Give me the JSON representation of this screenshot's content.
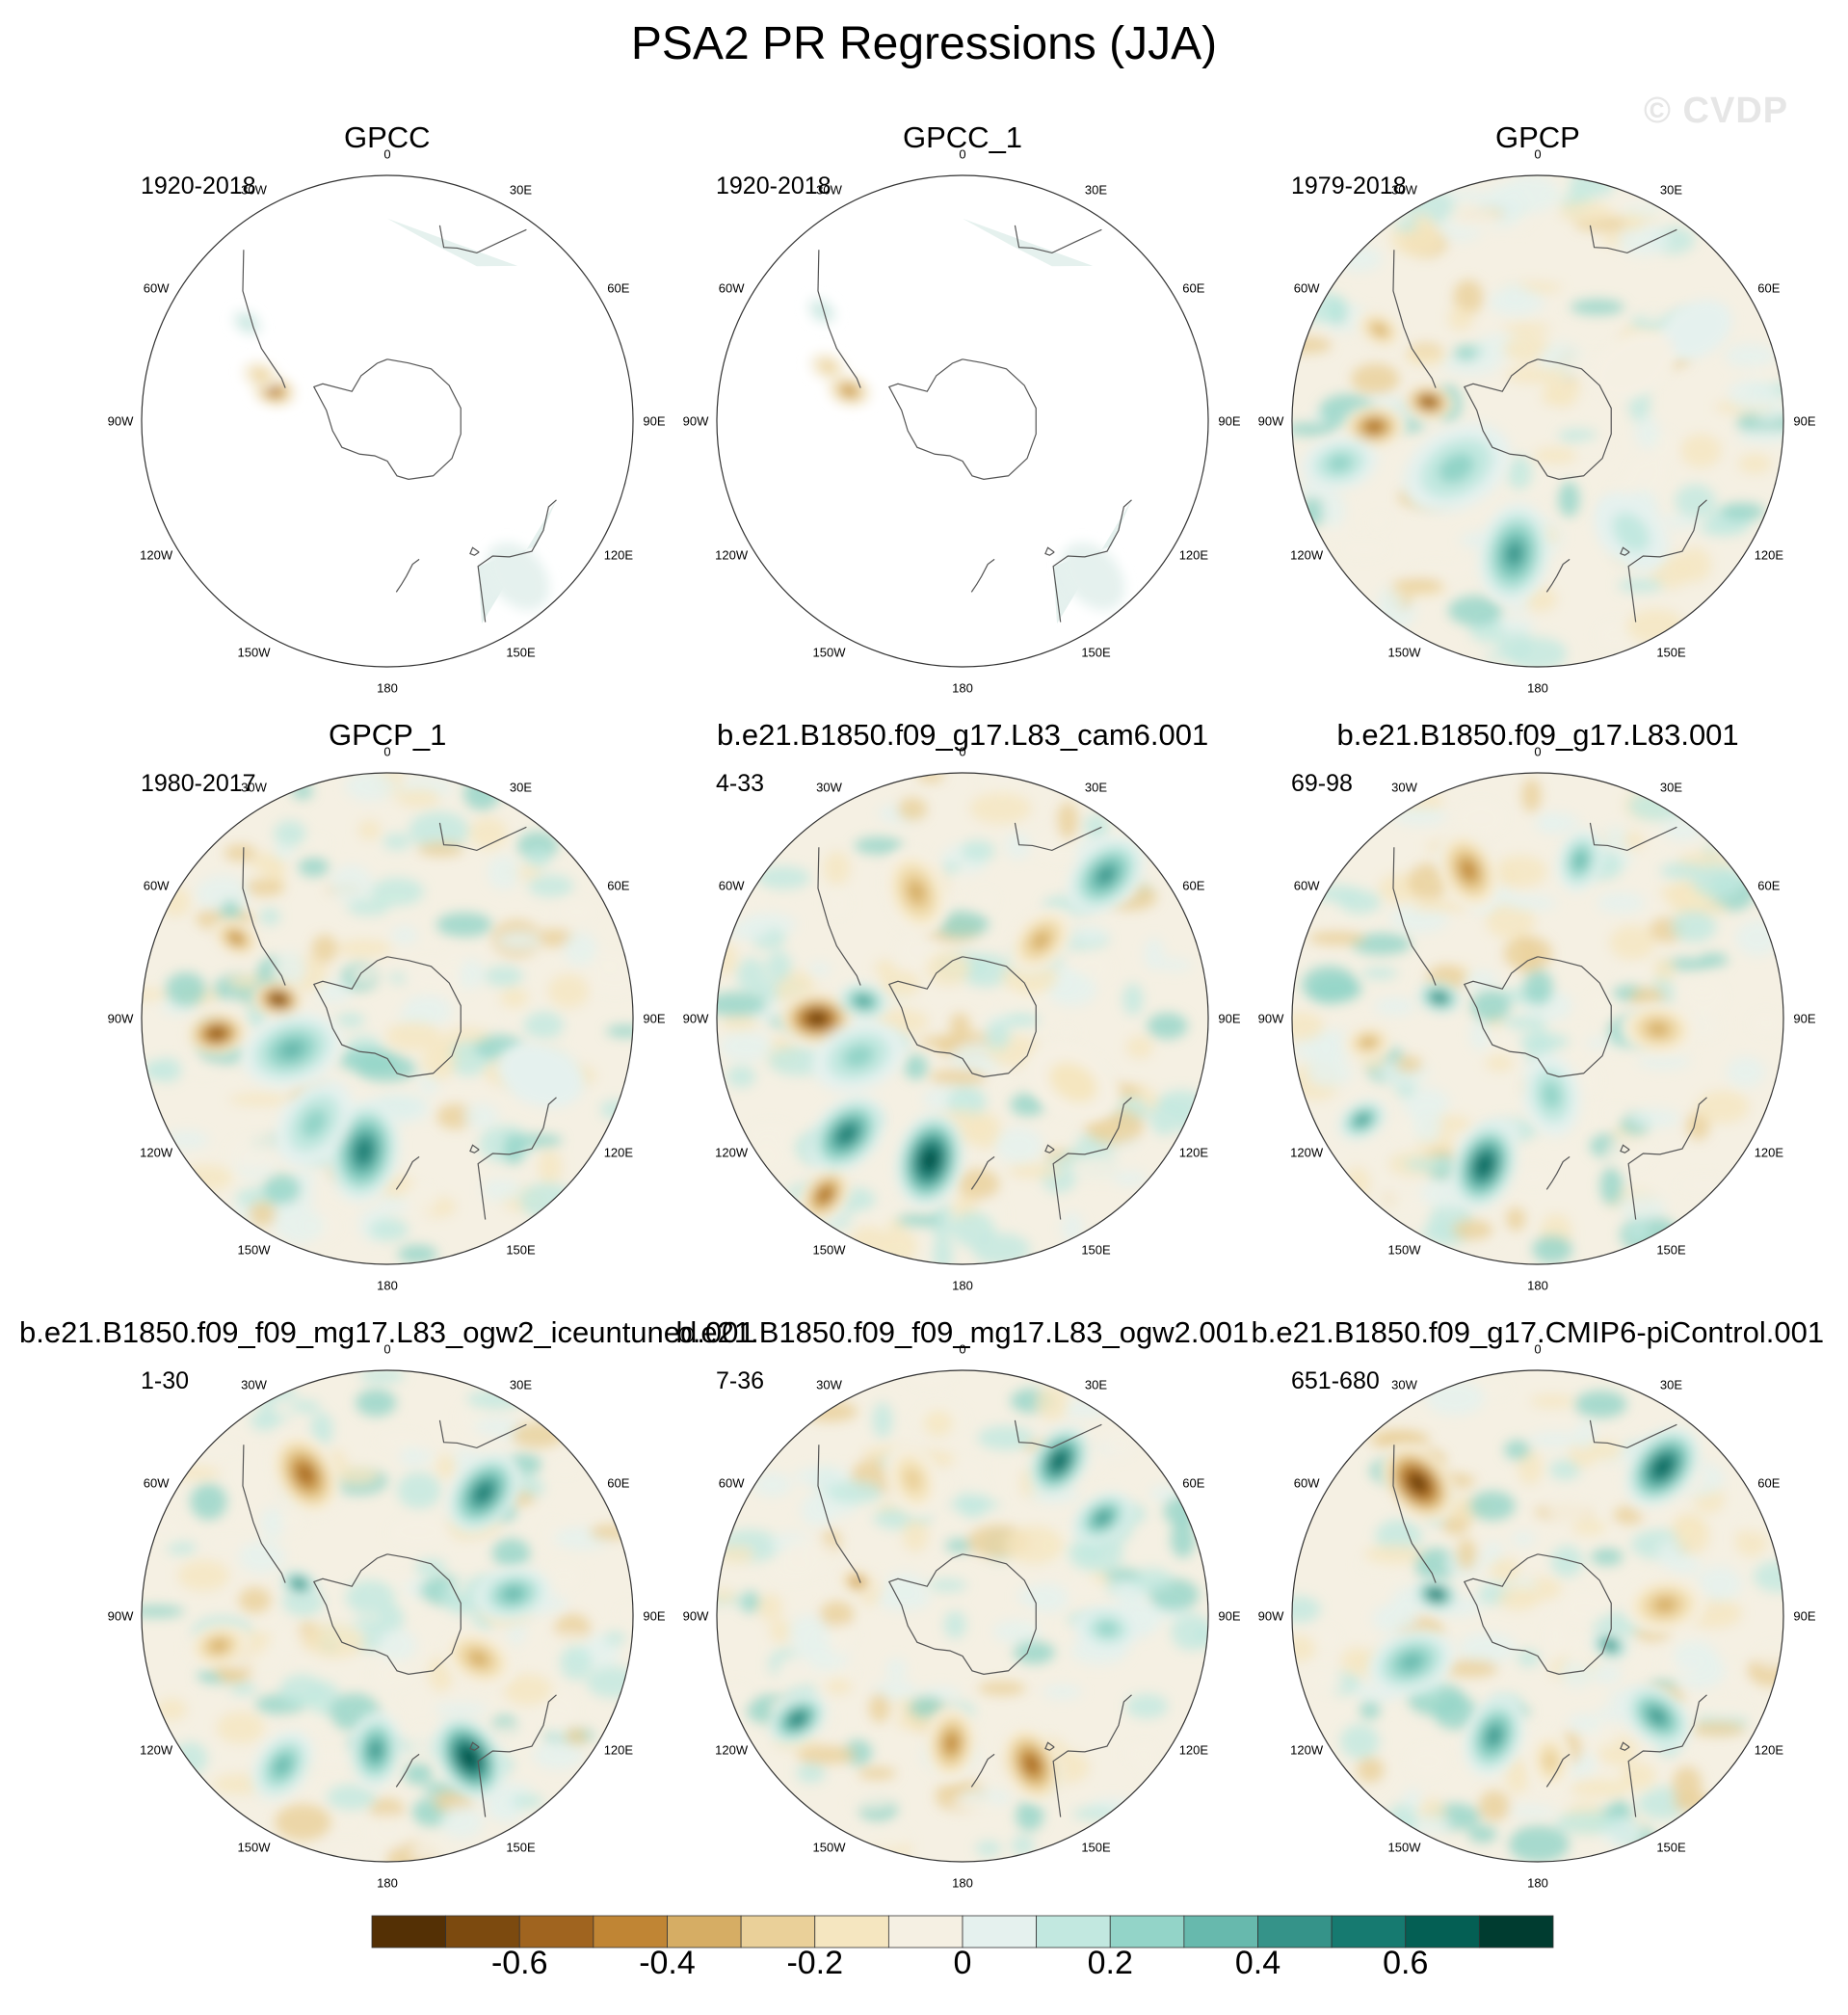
{
  "chart_data": {
    "type": "heatmap",
    "projection": "south polar stereographic",
    "title": "PSA2 PR Regressions (JJA)",
    "watermark": "© CVDP",
    "longitude_labels": [
      "0",
      "30E",
      "60E",
      "90E",
      "120E",
      "150E",
      "180",
      "150W",
      "120W",
      "90W",
      "60W",
      "30W"
    ],
    "colorbar": {
      "levels": [
        -0.8,
        -0.7,
        -0.6,
        -0.5,
        -0.4,
        -0.3,
        -0.2,
        -0.1,
        0,
        0.1,
        0.2,
        0.3,
        0.4,
        0.5,
        0.6,
        0.7,
        0.8
      ],
      "colors": [
        "#543005",
        "#7c4a0f",
        "#a0641f",
        "#c08534",
        "#d6ad64",
        "#ead099",
        "#f5e6c0",
        "#f5f0e3",
        "#e5f1ee",
        "#c2e8e0",
        "#93d4c8",
        "#67b9ad",
        "#359389",
        "#167a70",
        "#045f54",
        "#003c30"
      ],
      "tick_labels": [
        "-0.6",
        "-0.4",
        "-0.2",
        "0",
        "0.2",
        "0.4",
        "0.6"
      ]
    },
    "panels": [
      {
        "title": "GPCC",
        "period": "1920-2018",
        "coverage": "land only",
        "features": [
          {
            "value": -0.6,
            "lon": 285,
            "lat": -53,
            "r": 0.07
          },
          {
            "value": -0.3,
            "lon": 290,
            "lat": -48,
            "r": 0.06
          },
          {
            "value": 0.2,
            "lon": 305,
            "lat": -38,
            "r": 0.05
          },
          {
            "value": 0.15,
            "lon": 140,
            "lat": -30,
            "r": 0.12
          }
        ]
      },
      {
        "title": "GPCC_1",
        "period": "1920-2018",
        "coverage": "land only",
        "features": [
          {
            "value": -0.5,
            "lon": 285,
            "lat": -53,
            "r": 0.07
          },
          {
            "value": -0.3,
            "lon": 292,
            "lat": -45,
            "r": 0.06
          },
          {
            "value": 0.2,
            "lon": 308,
            "lat": -36,
            "r": 0.05
          },
          {
            "value": 0.15,
            "lon": 140,
            "lat": -30,
            "r": 0.12
          }
        ]
      },
      {
        "title": "GPCP",
        "period": "1979-2018",
        "features": [
          {
            "value": -0.7,
            "lon": 280,
            "lat": -55,
            "r": 0.08
          },
          {
            "value": -0.6,
            "lon": 268,
            "lat": -40,
            "r": 0.1
          },
          {
            "value": -0.4,
            "lon": 300,
            "lat": -35,
            "r": 0.08
          },
          {
            "value": 0.5,
            "lon": 190,
            "lat": -48,
            "r": 0.16
          },
          {
            "value": 0.3,
            "lon": 240,
            "lat": -60,
            "r": 0.18
          },
          {
            "value": 0.3,
            "lon": 258,
            "lat": -30,
            "r": 0.12
          },
          {
            "value": 0.2,
            "lon": 140,
            "lat": -45,
            "r": 0.14
          },
          {
            "value": 0.15,
            "lon": 60,
            "lat": -35,
            "r": 0.12
          },
          {
            "value": -0.15,
            "lon": 60,
            "lat": -55,
            "r": 0.14
          }
        ]
      },
      {
        "title": "GPCP_1",
        "period": "1980-2017",
        "features": [
          {
            "value": -0.8,
            "lon": 280,
            "lat": -55,
            "r": 0.08
          },
          {
            "value": -0.7,
            "lon": 265,
            "lat": -38,
            "r": 0.1
          },
          {
            "value": -0.5,
            "lon": 298,
            "lat": -38,
            "r": 0.08
          },
          {
            "value": 0.6,
            "lon": 190,
            "lat": -48,
            "r": 0.16
          },
          {
            "value": 0.4,
            "lon": 252,
            "lat": -58,
            "r": 0.16
          },
          {
            "value": 0.3,
            "lon": 215,
            "lat": -50,
            "r": 0.15
          },
          {
            "value": 0.15,
            "lon": 110,
            "lat": -40,
            "r": 0.14
          }
        ]
      },
      {
        "title": "b.e21.B1850.f09_g17.L83_cam6.001",
        "period": "4-33",
        "features": [
          {
            "value": -0.8,
            "lon": 270,
            "lat": -45,
            "r": 0.12
          },
          {
            "value": -0.6,
            "lon": 218,
            "lat": -25,
            "r": 0.1
          },
          {
            "value": 0.8,
            "lon": 193,
            "lat": -45,
            "r": 0.15
          },
          {
            "value": 0.6,
            "lon": 225,
            "lat": -40,
            "r": 0.14
          },
          {
            "value": 0.5,
            "lon": 45,
            "lat": -30,
            "r": 0.14
          },
          {
            "value": -0.4,
            "lon": 340,
            "lat": -48,
            "r": 0.14
          },
          {
            "value": -0.4,
            "lon": 45,
            "lat": -55,
            "r": 0.12
          },
          {
            "value": 0.5,
            "lon": 280,
            "lat": -58,
            "r": 0.08
          },
          {
            "value": 0.3,
            "lon": 250,
            "lat": -55,
            "r": 0.15
          },
          {
            "value": -0.2,
            "lon": 120,
            "lat": -50,
            "r": 0.16
          }
        ]
      },
      {
        "title": "b.e21.B1850.f09_g17.L83.001",
        "period": "69-98",
        "features": [
          {
            "value": -0.5,
            "lon": 335,
            "lat": -40,
            "r": 0.13
          },
          {
            "value": 0.7,
            "lon": 200,
            "lat": -42,
            "r": 0.14
          },
          {
            "value": 0.5,
            "lon": 240,
            "lat": -30,
            "r": 0.08
          },
          {
            "value": 0.6,
            "lon": 282,
            "lat": -58,
            "r": 0.07
          },
          {
            "value": 0.4,
            "lon": 15,
            "lat": -40,
            "r": 0.1
          },
          {
            "value": -0.4,
            "lon": 95,
            "lat": -52,
            "r": 0.12
          },
          {
            "value": -0.4,
            "lon": 262,
            "lat": -38,
            "r": 0.08
          },
          {
            "value": 0.3,
            "lon": 170,
            "lat": -65,
            "r": 0.13
          }
        ]
      },
      {
        "title": "b.e21.B1850.f09_f09_mg17.L83_ogw2_iceuntuned.001",
        "period": "1-30",
        "features": [
          {
            "value": -0.6,
            "lon": 330,
            "lat": -40,
            "r": 0.14
          },
          {
            "value": 0.8,
            "lon": 150,
            "lat": -40,
            "r": 0.14
          },
          {
            "value": 0.5,
            "lon": 185,
            "lat": -48,
            "r": 0.12
          },
          {
            "value": 0.6,
            "lon": 38,
            "lat": -42,
            "r": 0.14
          },
          {
            "value": 0.4,
            "lon": 80,
            "lat": -50,
            "r": 0.12
          },
          {
            "value": -0.4,
            "lon": 260,
            "lat": -38,
            "r": 0.1
          },
          {
            "value": -0.4,
            "lon": 115,
            "lat": -58,
            "r": 0.12
          },
          {
            "value": 0.6,
            "lon": 290,
            "lat": -60,
            "r": 0.06
          },
          {
            "value": 0.4,
            "lon": 215,
            "lat": -35,
            "r": 0.12
          }
        ]
      },
      {
        "title": "b.e21.B1850.f09_f09_mg17.L83_ogw2.001",
        "period": "7-36",
        "features": [
          {
            "value": 0.7,
            "lon": 32,
            "lat": -35,
            "r": 0.12
          },
          {
            "value": 0.5,
            "lon": 55,
            "lat": -38,
            "r": 0.1
          },
          {
            "value": 0.6,
            "lon": 238,
            "lat": -32,
            "r": 0.1
          },
          {
            "value": -0.6,
            "lon": 155,
            "lat": -40,
            "r": 0.13
          },
          {
            "value": -0.5,
            "lon": 185,
            "lat": -50,
            "r": 0.12
          },
          {
            "value": -0.5,
            "lon": 288,
            "lat": -55,
            "r": 0.06
          },
          {
            "value": -0.3,
            "lon": 340,
            "lat": -45,
            "r": 0.12
          },
          {
            "value": 0.3,
            "lon": 95,
            "lat": -45,
            "r": 0.1
          }
        ]
      },
      {
        "title": "b.e21.B1850.f09_g17.CMIP6-piControl.001",
        "period": "651-680",
        "features": [
          {
            "value": -0.8,
            "lon": 318,
            "lat": -36,
            "r": 0.14
          },
          {
            "value": 0.7,
            "lon": 40,
            "lat": -32,
            "r": 0.14
          },
          {
            "value": 0.7,
            "lon": 282,
            "lat": -57,
            "r": 0.07
          },
          {
            "value": 0.5,
            "lon": 200,
            "lat": -50,
            "r": 0.13
          },
          {
            "value": 0.5,
            "lon": 130,
            "lat": -42,
            "r": 0.12
          },
          {
            "value": 0.4,
            "lon": 250,
            "lat": -48,
            "r": 0.14
          },
          {
            "value": -0.4,
            "lon": 85,
            "lat": -50,
            "r": 0.13
          },
          {
            "value": -0.3,
            "lon": 175,
            "lat": -45,
            "r": 0.1
          },
          {
            "value": 0.6,
            "lon": 112,
            "lat": -65,
            "r": 0.06
          }
        ]
      }
    ]
  }
}
